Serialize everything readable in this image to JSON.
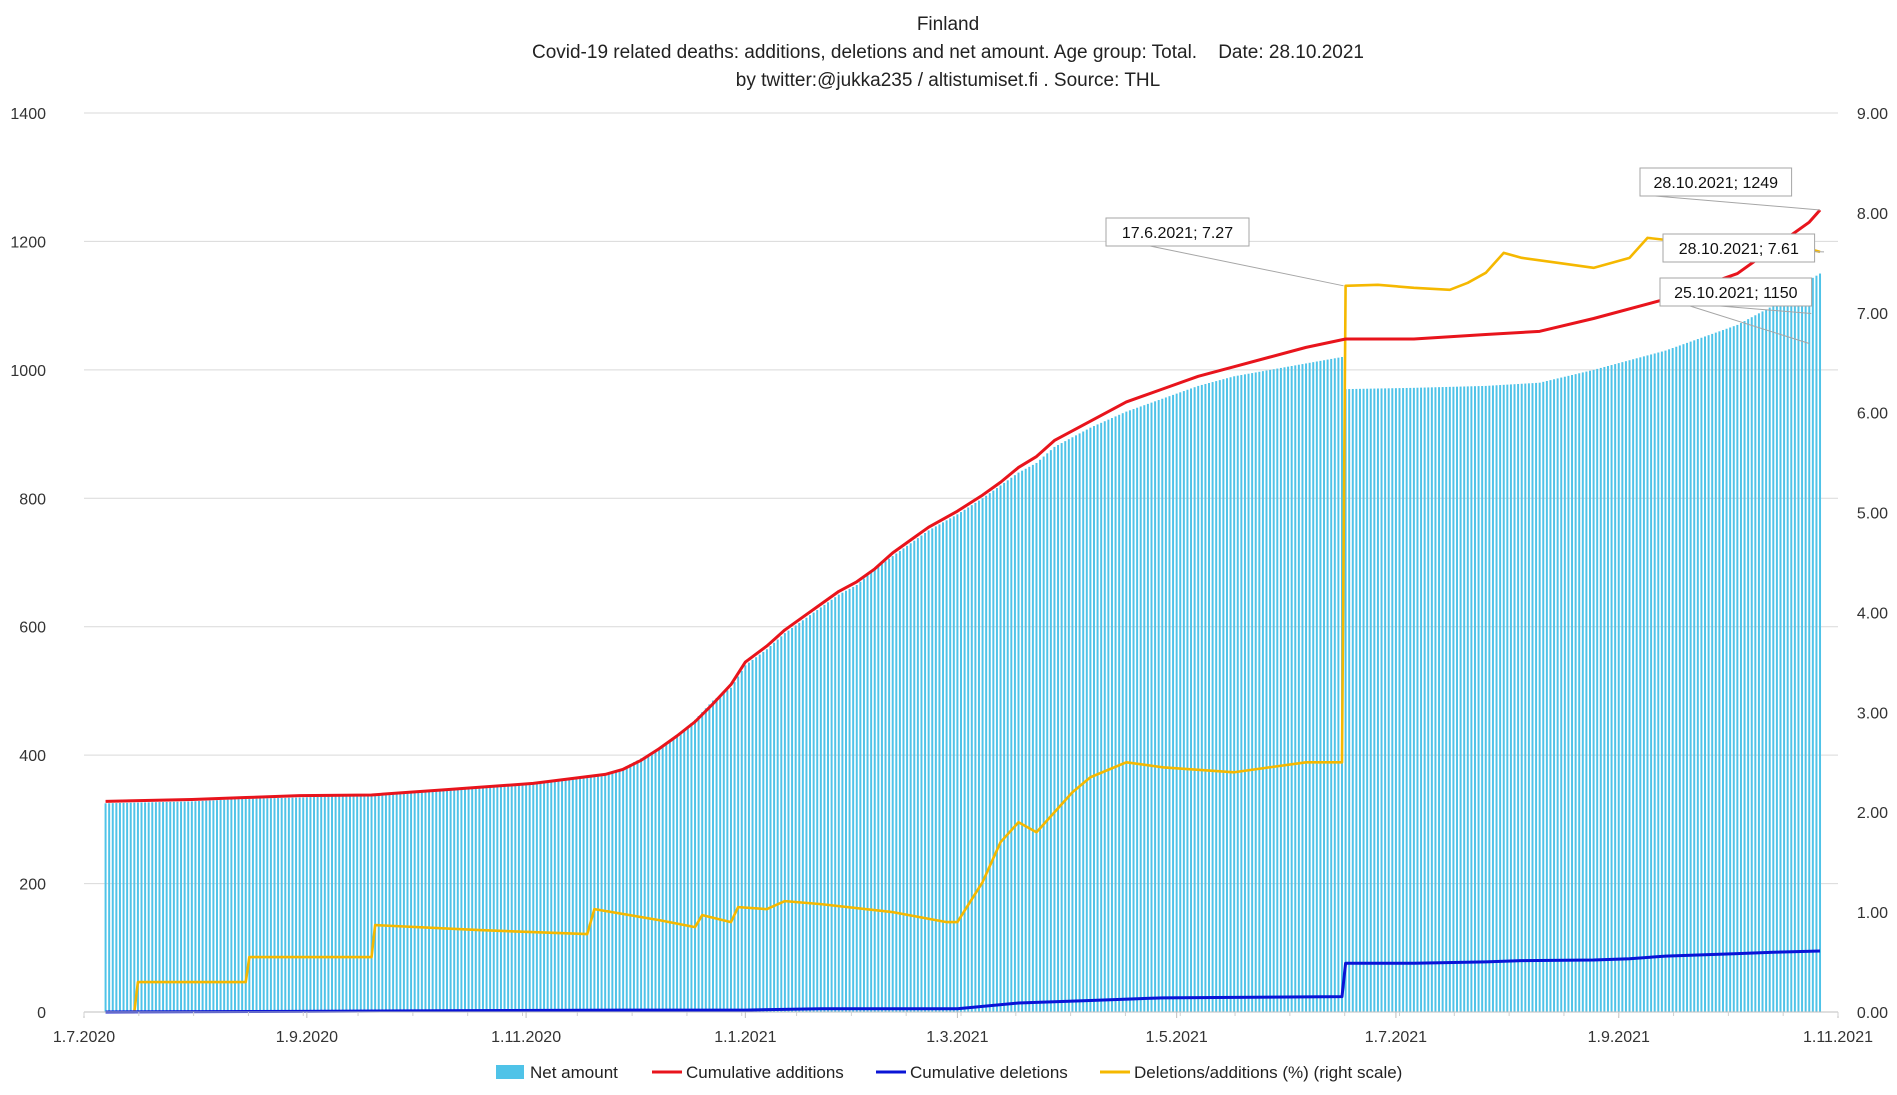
{
  "chart_data": {
    "type": "bar+line",
    "title": "Finland",
    "subtitle": "Covid-19 related deaths: additions, deletions and net amount. Age group: Total.    Date: 28.10.2021",
    "byline": "by twitter:@jukka235  / altistumiset.fi . Source: THL",
    "x_range_days": [
      0,
      488
    ],
    "x_ticks": [
      {
        "label": "1.7.2020",
        "day": 0
      },
      {
        "label": "1.9.2020",
        "day": 62
      },
      {
        "label": "1.11.2020",
        "day": 123
      },
      {
        "label": "1.1.2021",
        "day": 184
      },
      {
        "label": "1.3.2021",
        "day": 243
      },
      {
        "label": "1.5.2021",
        "day": 304
      },
      {
        "label": "1.7.2021",
        "day": 365
      },
      {
        "label": "1.9.2021",
        "day": 427
      },
      {
        "label": "1.11.2021",
        "day": 488
      }
    ],
    "y_left": {
      "min": 0,
      "max": 1400,
      "ticks": [
        "0",
        "200",
        "400",
        "600",
        "800",
        "1000",
        "1200",
        "1400"
      ]
    },
    "y_right": {
      "min": 0,
      "max": 9,
      "ticks": [
        "0.00",
        "1.00",
        "2.00",
        "3.00",
        "4.00",
        "5.00",
        "6.00",
        "7.00",
        "8.00",
        "9.00"
      ]
    },
    "bar_range_days": [
      6,
      483
    ],
    "legend": [
      {
        "name": "Net amount",
        "color": "#4FC3E8",
        "kind": "bar"
      },
      {
        "name": "Cumulative additions",
        "color": "#E8141C",
        "kind": "line"
      },
      {
        "name": "Cumulative deletions",
        "color": "#0A14D6",
        "kind": "line"
      },
      {
        "name": "Deletions/additions (%) (right scale)",
        "color": "#F5B800",
        "kind": "line"
      }
    ],
    "net_amount": [
      [
        6,
        325
      ],
      [
        30,
        328
      ],
      [
        45,
        332
      ],
      [
        60,
        334
      ],
      [
        80,
        338
      ],
      [
        90,
        342
      ],
      [
        100,
        345
      ],
      [
        110,
        350
      ],
      [
        125,
        355
      ],
      [
        135,
        362
      ],
      [
        145,
        368
      ],
      [
        150,
        380
      ],
      [
        155,
        395
      ],
      [
        160,
        410
      ],
      [
        165,
        430
      ],
      [
        170,
        455
      ],
      [
        175,
        485
      ],
      [
        180,
        505
      ],
      [
        184,
        540
      ],
      [
        190,
        565
      ],
      [
        195,
        590
      ],
      [
        200,
        610
      ],
      [
        205,
        630
      ],
      [
        210,
        650
      ],
      [
        215,
        665
      ],
      [
        220,
        690
      ],
      [
        225,
        710
      ],
      [
        230,
        730
      ],
      [
        235,
        750
      ],
      [
        243,
        775
      ],
      [
        250,
        800
      ],
      [
        255,
        820
      ],
      [
        260,
        840
      ],
      [
        265,
        855
      ],
      [
        270,
        880
      ],
      [
        280,
        910
      ],
      [
        290,
        935
      ],
      [
        300,
        955
      ],
      [
        310,
        975
      ],
      [
        320,
        990
      ],
      [
        330,
        1000
      ],
      [
        340,
        1010
      ],
      [
        350,
        1020
      ],
      [
        351,
        970
      ],
      [
        370,
        972
      ],
      [
        390,
        975
      ],
      [
        405,
        980
      ],
      [
        420,
        1000
      ],
      [
        440,
        1030
      ],
      [
        460,
        1070
      ],
      [
        470,
        1100
      ],
      [
        480,
        1140
      ],
      [
        483,
        1150
      ]
    ],
    "cumulative_additions": [
      [
        6,
        328
      ],
      [
        30,
        331
      ],
      [
        45,
        334
      ],
      [
        60,
        337
      ],
      [
        80,
        338
      ],
      [
        90,
        342
      ],
      [
        100,
        346
      ],
      [
        110,
        350
      ],
      [
        125,
        356
      ],
      [
        135,
        363
      ],
      [
        145,
        370
      ],
      [
        150,
        378
      ],
      [
        155,
        392
      ],
      [
        160,
        410
      ],
      [
        165,
        430
      ],
      [
        170,
        452
      ],
      [
        175,
        480
      ],
      [
        180,
        510
      ],
      [
        184,
        545
      ],
      [
        190,
        570
      ],
      [
        195,
        595
      ],
      [
        200,
        615
      ],
      [
        205,
        635
      ],
      [
        210,
        655
      ],
      [
        215,
        670
      ],
      [
        220,
        690
      ],
      [
        225,
        715
      ],
      [
        230,
        735
      ],
      [
        235,
        755
      ],
      [
        243,
        780
      ],
      [
        250,
        805
      ],
      [
        255,
        825
      ],
      [
        260,
        848
      ],
      [
        265,
        865
      ],
      [
        270,
        890
      ],
      [
        280,
        920
      ],
      [
        290,
        950
      ],
      [
        300,
        970
      ],
      [
        310,
        990
      ],
      [
        320,
        1005
      ],
      [
        330,
        1020
      ],
      [
        340,
        1035
      ],
      [
        351,
        1048
      ],
      [
        370,
        1048
      ],
      [
        390,
        1055
      ],
      [
        405,
        1060
      ],
      [
        420,
        1080
      ],
      [
        440,
        1110
      ],
      [
        460,
        1150
      ],
      [
        470,
        1190
      ],
      [
        480,
        1230
      ],
      [
        483,
        1249
      ]
    ],
    "cumulative_deletions": [
      [
        6,
        0
      ],
      [
        60,
        1
      ],
      [
        100,
        2
      ],
      [
        150,
        3
      ],
      [
        184,
        3
      ],
      [
        205,
        5
      ],
      [
        243,
        5
      ],
      [
        260,
        14
      ],
      [
        280,
        18
      ],
      [
        300,
        22
      ],
      [
        350,
        24
      ],
      [
        351,
        76
      ],
      [
        370,
        76
      ],
      [
        390,
        78
      ],
      [
        400,
        80
      ],
      [
        420,
        81
      ],
      [
        430,
        83
      ],
      [
        440,
        87
      ],
      [
        450,
        89
      ],
      [
        460,
        91
      ],
      [
        470,
        93
      ],
      [
        483,
        95
      ]
    ],
    "deletions_ratio_pct": [
      [
        6,
        0
      ],
      [
        14,
        0
      ],
      [
        15,
        0.3
      ],
      [
        30,
        0.3
      ],
      [
        45,
        0.3
      ],
      [
        46,
        0.55
      ],
      [
        60,
        0.55
      ],
      [
        80,
        0.55
      ],
      [
        81,
        0.87
      ],
      [
        110,
        0.82
      ],
      [
        140,
        0.78
      ],
      [
        142,
        1.03
      ],
      [
        160,
        0.92
      ],
      [
        170,
        0.85
      ],
      [
        172,
        0.97
      ],
      [
        180,
        0.9
      ],
      [
        182,
        1.05
      ],
      [
        190,
        1.03
      ],
      [
        195,
        1.11
      ],
      [
        205,
        1.08
      ],
      [
        225,
        1.0
      ],
      [
        240,
        0.9
      ],
      [
        243,
        0.9
      ],
      [
        250,
        1.3
      ],
      [
        255,
        1.7
      ],
      [
        260,
        1.9
      ],
      [
        265,
        1.8
      ],
      [
        270,
        2.0
      ],
      [
        275,
        2.2
      ],
      [
        280,
        2.35
      ],
      [
        290,
        2.5
      ],
      [
        300,
        2.45
      ],
      [
        320,
        2.4
      ],
      [
        330,
        2.45
      ],
      [
        340,
        2.5
      ],
      [
        350,
        2.5
      ],
      [
        351,
        7.27
      ],
      [
        360,
        7.28
      ],
      [
        370,
        7.25
      ],
      [
        380,
        7.23
      ],
      [
        385,
        7.3
      ],
      [
        390,
        7.4
      ],
      [
        395,
        7.6
      ],
      [
        400,
        7.55
      ],
      [
        410,
        7.5
      ],
      [
        420,
        7.45
      ],
      [
        430,
        7.55
      ],
      [
        435,
        7.75
      ],
      [
        440,
        7.73
      ],
      [
        445,
        7.69
      ],
      [
        450,
        7.67
      ],
      [
        455,
        7.66
      ],
      [
        460,
        7.65
      ],
      [
        465,
        7.68
      ],
      [
        470,
        7.7
      ],
      [
        475,
        7.73
      ],
      [
        478,
        7.68
      ],
      [
        480,
        7.64
      ],
      [
        483,
        7.61
      ]
    ],
    "annotations": [
      {
        "text": "17.6.2021; 7.27",
        "day": 351,
        "value": 7.27,
        "axis": "right"
      },
      {
        "text": "28.10.2021; 1249",
        "day": 483,
        "value": 1249,
        "axis": "left"
      },
      {
        "text": "28.10.2021; 7.61",
        "day": 483,
        "value": 7.61,
        "axis": "right"
      },
      {
        "text": "25.10.2021; 1150",
        "day": 480,
        "value": 1150,
        "axis": "left"
      }
    ]
  }
}
